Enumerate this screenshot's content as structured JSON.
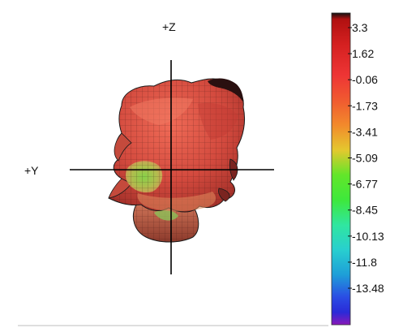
{
  "axes": {
    "z_label": "+Z",
    "y_label": "+Y"
  },
  "colorbar": {
    "ticks": [
      "3.3",
      "1.62",
      "-0.06",
      "-1.73",
      "-3.41",
      "-5.09",
      "-6.77",
      "-8.45",
      "-10.13",
      "-11.8",
      "-13.48"
    ],
    "stops": [
      {
        "pos": 0.0,
        "color": "#111111"
      },
      {
        "pos": 0.02,
        "color": "#b01010"
      },
      {
        "pos": 0.1,
        "color": "#d42020"
      },
      {
        "pos": 0.2,
        "color": "#ee3535"
      },
      {
        "pos": 0.28,
        "color": "#f05a30"
      },
      {
        "pos": 0.36,
        "color": "#f28a2c"
      },
      {
        "pos": 0.44,
        "color": "#e4c82e"
      },
      {
        "pos": 0.52,
        "color": "#62e62a"
      },
      {
        "pos": 0.6,
        "color": "#3ee83c"
      },
      {
        "pos": 0.68,
        "color": "#30e6a0"
      },
      {
        "pos": 0.76,
        "color": "#28cfcf"
      },
      {
        "pos": 0.84,
        "color": "#1e9ed8"
      },
      {
        "pos": 0.91,
        "color": "#2a4ee4"
      },
      {
        "pos": 0.96,
        "color": "#2a2ad8"
      },
      {
        "pos": 1.0,
        "color": "#8a18b8"
      }
    ]
  },
  "pattern_colors": {
    "main": "#d8584a",
    "dark": "#a8302a",
    "light": "#ee8a6a",
    "green": "#7fd04a",
    "edge": "#1a1a1a"
  }
}
